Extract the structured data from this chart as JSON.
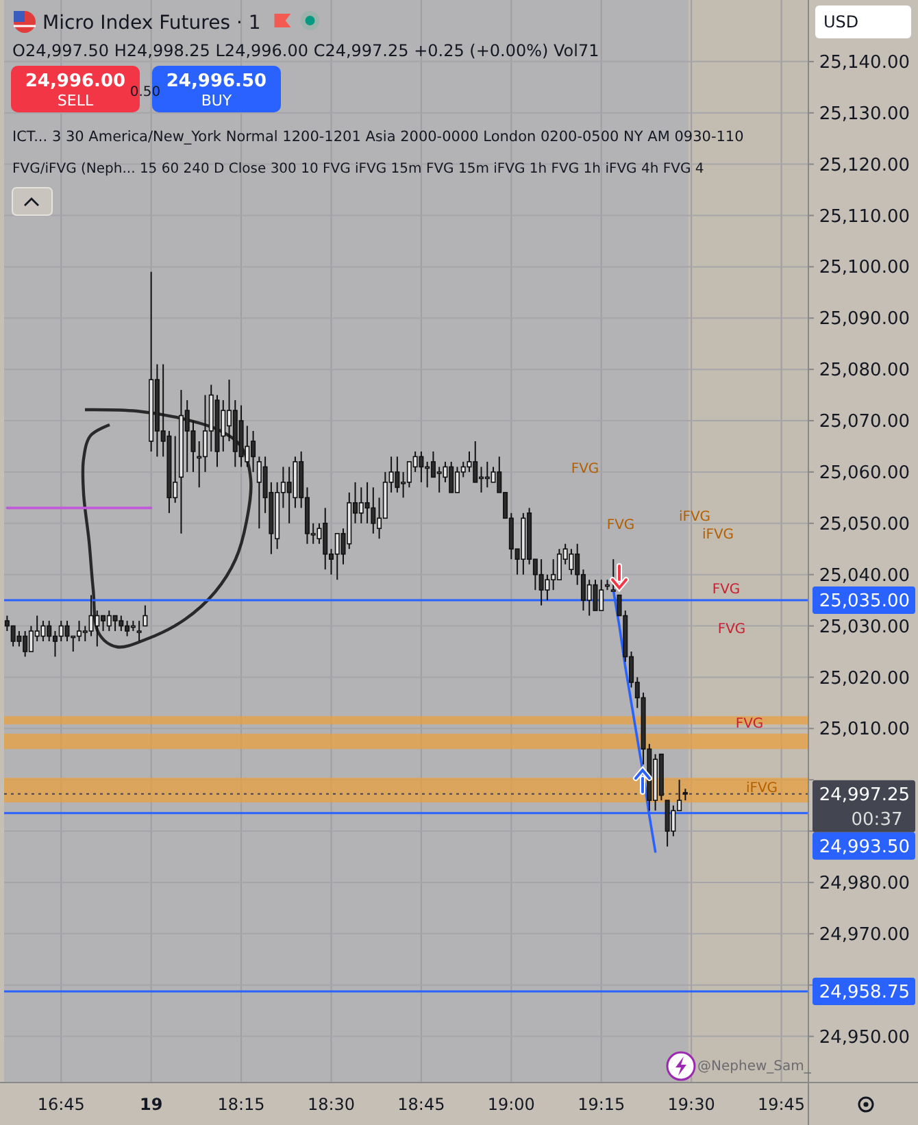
{
  "chart_data": {
    "type": "candlestick",
    "title": "Micro Index Futures · 1",
    "subtitle": "O24,997.50 H24,998.25 L24,996.00 C24,997.25 +0.25 (+0.00%) Vol71",
    "categories": [
      null,
      null,
      null,
      null,
      null,
      null,
      null,
      null,
      null,
      "16:45",
      null,
      null,
      null,
      null,
      null,
      null,
      null,
      null,
      null,
      null,
      null,
      null,
      null,
      null,
      "19",
      null,
      null,
      null,
      null,
      null,
      null,
      null,
      null,
      null,
      null,
      null,
      null,
      null,
      null,
      "18:15",
      null,
      null,
      null,
      null,
      null,
      null,
      null,
      null,
      null,
      null,
      null,
      null,
      null,
      null,
      "18:30",
      null,
      null,
      null,
      null,
      null,
      null,
      null,
      null,
      null,
      null,
      null,
      null,
      null,
      null,
      "18:45",
      null,
      null,
      null,
      null,
      null,
      null,
      null,
      null,
      null,
      null,
      null,
      null,
      null,
      null,
      "19:00",
      null,
      null,
      null,
      null,
      null,
      null,
      null,
      null,
      null,
      null,
      null,
      null,
      null,
      null,
      "19:15",
      null,
      null,
      null,
      null,
      null,
      null,
      null,
      null,
      null,
      null,
      null,
      null,
      null,
      null,
      "19:30",
      null,
      null,
      null,
      null,
      null,
      null,
      null,
      null,
      null,
      null,
      null,
      null,
      null,
      null,
      "19:45",
      null,
      null,
      null,
      null
    ],
    "ohlc": [
      [
        25031,
        25032,
        25029,
        25030
      ],
      [
        25030,
        25030,
        25026,
        25027
      ],
      [
        25028,
        25029,
        25026,
        25027
      ],
      [
        25028,
        25029,
        25024,
        25025
      ],
      [
        25025,
        25030,
        25025,
        25029
      ],
      [
        25028,
        25032,
        25027,
        25029
      ],
      [
        25028,
        25031,
        25027,
        25030
      ],
      [
        25030,
        25031,
        25027,
        25028
      ],
      [
        25028,
        25029,
        25024,
        25027
      ],
      [
        25028,
        25031,
        25027,
        25030
      ],
      [
        25030,
        25031,
        25027,
        25028
      ],
      [
        25028,
        25028,
        25025,
        25028
      ],
      [
        25028,
        25031,
        25027,
        25029
      ],
      [
        25029,
        25030,
        25027,
        25029
      ],
      [
        25029,
        25036,
        25028,
        25032
      ],
      [
        25030,
        25033,
        25026,
        25032
      ],
      [
        25032,
        25032,
        25029,
        25031
      ],
      [
        25030,
        25033,
        25029,
        25032
      ],
      [
        25032,
        25032,
        25029,
        25031
      ],
      [
        25031,
        25032,
        25029,
        25030
      ],
      [
        25030,
        25031,
        25028,
        25029
      ],
      [
        25030,
        25031,
        25029,
        25030
      ],
      [
        25029,
        25031,
        25027,
        25029
      ],
      [
        25030,
        25034,
        25030,
        25032
      ],
      [
        25066,
        25099,
        25064,
        25078
      ],
      [
        25078,
        25081,
        25063,
        25068
      ],
      [
        25068,
        25081,
        25063,
        25066
      ],
      [
        25067,
        25068,
        25052,
        25055
      ],
      [
        25055,
        25067,
        25054,
        25058
      ],
      [
        25059,
        25076,
        25048,
        25071
      ],
      [
        25072,
        25074,
        25060,
        25068
      ],
      [
        25068,
        25070,
        25060,
        25064
      ],
      [
        25063,
        25066,
        25057,
        25063
      ],
      [
        25063,
        25075,
        25060,
        25068
      ],
      [
        25068,
        25077,
        25064,
        25075
      ],
      [
        25074,
        25075,
        25061,
        25064
      ],
      [
        25067,
        25074,
        25064,
        25072
      ],
      [
        25069,
        25078,
        25066,
        25072
      ],
      [
        25072,
        25074,
        25061,
        25064
      ],
      [
        25070,
        25073,
        25061,
        25063
      ],
      [
        25062,
        25069,
        25061,
        25065
      ],
      [
        25066,
        25068,
        25060,
        25063
      ],
      [
        25058,
        25063,
        25049,
        25062
      ],
      [
        25061,
        25063,
        25052,
        25055
      ],
      [
        25056,
        25058,
        25044,
        25048
      ],
      [
        25047,
        25058,
        25045,
        25056
      ],
      [
        25056,
        25061,
        25053,
        25058
      ],
      [
        25058,
        25061,
        25050,
        25056
      ],
      [
        25055,
        25063,
        25053,
        25062
      ],
      [
        25062,
        25064,
        25053,
        25055
      ],
      [
        25055,
        25057,
        25046,
        25048
      ],
      [
        25048,
        25050,
        25046,
        25048
      ],
      [
        25047,
        25050,
        25046,
        25049
      ],
      [
        25050,
        25053,
        25041,
        25044
      ],
      [
        25044,
        25045,
        25040,
        25043
      ],
      [
        25044,
        25048,
        25039,
        25048
      ],
      [
        25048,
        25049,
        25042,
        25044
      ],
      [
        25046,
        25056,
        25045,
        25054
      ],
      [
        25054,
        25058,
        25050,
        25052
      ],
      [
        25052,
        25057,
        25050,
        25054
      ],
      [
        25054,
        25058,
        25050,
        25053
      ],
      [
        25053,
        25057,
        25048,
        25050
      ],
      [
        25049,
        25055,
        25047,
        25051
      ],
      [
        25051,
        25060,
        25051,
        25058
      ],
      [
        25058,
        25063,
        25056,
        25060
      ],
      [
        25060,
        25063,
        25056,
        25057
      ],
      [
        25058,
        25060,
        25055,
        25058
      ],
      [
        25058,
        25062,
        25057,
        25062
      ],
      [
        25061,
        25064,
        25060,
        25063
      ],
      [
        25063,
        25064,
        25058,
        25061
      ],
      [
        25061,
        25062,
        25057,
        25061
      ],
      [
        25062,
        25064,
        25059,
        25059
      ],
      [
        25060,
        25061,
        25056,
        25060
      ],
      [
        25059,
        25062,
        25058,
        25061
      ],
      [
        25061,
        25062,
        25056,
        25056
      ],
      [
        25056,
        25061,
        25056,
        25060
      ],
      [
        25060,
        25062,
        25059,
        25061
      ],
      [
        25061,
        25064,
        25060,
        25062
      ],
      [
        25062,
        25066,
        25058,
        25058
      ],
      [
        25059,
        25061,
        25056,
        25059
      ],
      [
        25059,
        25062,
        25057,
        25059
      ],
      [
        25058,
        25061,
        25058,
        25060
      ],
      [
        25060,
        25063,
        25056,
        25056
      ],
      [
        25056,
        25056,
        25051,
        25051
      ],
      [
        25051,
        25052,
        25043,
        25045
      ],
      [
        25045,
        25045,
        25040,
        25043
      ],
      [
        25043,
        25052,
        25040,
        25051
      ],
      [
        25052,
        25053,
        25042,
        25043
      ],
      [
        25043,
        25043,
        25037,
        25040
      ],
      [
        25040,
        25043,
        25034,
        25037
      ],
      [
        25037,
        25040,
        25035,
        25039
      ],
      [
        25039,
        25043,
        25037,
        25040
      ],
      [
        25039,
        25045,
        25039,
        25044
      ],
      [
        25043,
        25046,
        25042,
        25045
      ],
      [
        25041,
        25045,
        25040,
        25044
      ],
      [
        25044,
        25046,
        25038,
        25040
      ],
      [
        25040,
        25041,
        25033,
        25035
      ],
      [
        25035,
        25039,
        25032,
        25038
      ],
      [
        25038,
        25039,
        25033,
        25033
      ],
      [
        25033,
        25039,
        25033,
        25037
      ],
      [
        25038,
        25039,
        25037,
        25038
      ],
      [
        25037,
        25043,
        25037,
        25037
      ],
      [
        25036,
        25036,
        25032,
        25032
      ],
      [
        25032,
        25033,
        25023,
        25024
      ],
      [
        25024,
        25025,
        25018,
        25019
      ],
      [
        25019,
        25020,
        25014,
        25016
      ],
      [
        25016,
        25017,
        25003,
        25006
      ],
      [
        25006,
        25007,
        24994,
        24996
      ],
      [
        24996,
        25005,
        24994,
        25004
      ],
      [
        25005,
        25005,
        24996,
        24997
      ],
      [
        24996,
        24996,
        24987,
        24990
      ],
      [
        24990,
        24995,
        24989,
        24994
      ],
      [
        24994,
        25000,
        24994,
        24996
      ],
      [
        24997.5,
        24998.25,
        24996,
        24997.25
      ],
      null,
      null,
      null,
      null,
      null,
      null,
      null,
      null,
      null,
      null,
      null,
      null,
      null,
      null,
      null,
      null,
      null,
      null,
      null,
      null
    ],
    "series": [
      {
        "type": "line",
        "color": "#2962ff",
        "values": [
          null,
          null,
          null,
          null,
          null,
          null,
          null,
          null,
          null,
          null,
          null,
          null,
          null,
          null,
          null,
          null,
          null,
          null,
          null,
          null,
          null,
          null,
          null,
          null,
          null,
          null,
          null,
          null,
          null,
          null,
          null,
          null,
          null,
          null,
          null,
          null,
          null,
          null,
          null,
          null,
          null,
          null,
          null,
          null,
          null,
          null,
          null,
          null,
          null,
          null,
          null,
          null,
          null,
          null,
          null,
          null,
          null,
          null,
          null,
          null,
          null,
          null,
          null,
          null,
          null,
          null,
          null,
          null,
          null,
          null,
          null,
          null,
          null,
          null,
          null,
          null,
          null,
          null,
          null,
          null,
          null,
          null,
          null,
          null,
          null,
          null,
          null,
          null,
          null,
          null,
          null,
          null,
          null,
          null,
          null,
          null,
          null,
          null,
          null,
          null,
          null,
          25037,
          25030,
          25022,
          25015,
          25008,
          25001,
          24993,
          24986,
          null,
          null,
          null,
          null,
          null,
          null,
          null,
          null,
          null,
          null,
          null,
          null,
          null,
          null,
          null,
          null,
          null,
          null,
          null,
          null,
          null,
          null,
          null,
          null,
          null
        ]
      },
      {
        "type": "line",
        "color": "#c05ad8",
        "values": [
          25053,
          25053,
          25053,
          25053,
          25053,
          25053,
          25053,
          25053,
          25053,
          25053,
          25053,
          25053,
          25053,
          25053,
          25053,
          25053,
          25053,
          25053,
          25053,
          25053,
          25053,
          25053,
          25053,
          25053,
          25053,
          null,
          null,
          null,
          null,
          null,
          null,
          null,
          null,
          null,
          null,
          null,
          null,
          null,
          null,
          null,
          null,
          null,
          null,
          null,
          null,
          null,
          null,
          null,
          null,
          null,
          null,
          null,
          null,
          null,
          null,
          null,
          null,
          null,
          null,
          null,
          null,
          null,
          null,
          null,
          null,
          null,
          null,
          null,
          null,
          null,
          null,
          null,
          null,
          null,
          null,
          null,
          null,
          null,
          null,
          null,
          null,
          null,
          null,
          null,
          null,
          null,
          null,
          null,
          null,
          null,
          null,
          null,
          null,
          null,
          null,
          null,
          null,
          null,
          null,
          null,
          null,
          null,
          null,
          null,
          null,
          null,
          null,
          null,
          null,
          null,
          null,
          null,
          null,
          null,
          null,
          null,
          null,
          null,
          null,
          null,
          null,
          null,
          null,
          null,
          null,
          null,
          null,
          null,
          null,
          null,
          null,
          null,
          null,
          null
        ]
      }
    ],
    "ylim": [
      24941,
      25152
    ],
    "yticks": [
      {
        "value": 24950,
        "label": "24,950.00"
      },
      {
        "value": 24960,
        "label": null
      },
      {
        "value": 24970,
        "label": "24,970.00"
      },
      {
        "value": 24980,
        "label": "24,980.00"
      },
      {
        "value": 24990,
        "label": null
      },
      {
        "value": 25000,
        "label": null
      },
      {
        "value": 25010,
        "label": "25,010.00"
      },
      {
        "value": 25020,
        "label": "25,020.00"
      },
      {
        "value": 25030,
        "label": "25,030.00"
      },
      {
        "value": 25040,
        "label": "25,040.00"
      },
      {
        "value": 25050,
        "label": "25,050.00"
      },
      {
        "value": 25060,
        "label": "25,060.00"
      },
      {
        "value": 25070,
        "label": "25,070.00"
      },
      {
        "value": 25080,
        "label": "25,080.00"
      },
      {
        "value": 25090,
        "label": "25,090.00"
      },
      {
        "value": 25100,
        "label": "25,100.00"
      },
      {
        "value": 25110,
        "label": "25,110.00"
      },
      {
        "value": 25120,
        "label": "25,120.00"
      },
      {
        "value": 25130,
        "label": "25,130.00"
      },
      {
        "value": 25140,
        "label": "25,140.00"
      }
    ],
    "grid": true,
    "ref_lines": [
      {
        "axis": "y",
        "value": 25035,
        "label": "25,035.00",
        "color": "#2962ff"
      },
      {
        "axis": "y",
        "value": 24997.25,
        "label": "24,997.25",
        "color": "#434651",
        "line_style": "dotted"
      },
      {
        "axis": "y",
        "value": 24993.5,
        "label": "24,993.50",
        "color": "#2962ff"
      },
      {
        "axis": "y",
        "value": 24958.75,
        "label": "24,958.75",
        "color": "#2962ff"
      }
    ],
    "bands": [
      {
        "axis": "y",
        "from": 25010.8,
        "to": 25012.4,
        "color": "#e8a040"
      },
      {
        "axis": "y",
        "from": 25006,
        "to": 25009,
        "color": "#e8a040"
      },
      {
        "axis": "y",
        "from": 24995.6,
        "to": 25000.4,
        "color": "#e8a040"
      }
    ],
    "annotations": [
      "24,996.00",
      "SELL",
      "0.50",
      "24,996.50",
      "BUY",
      "ICT... 3 30 America/New_York Normal 1200-1201 Asia 2000-0000 London 0200-0500 NY AM 0930-110",
      "FVG/iFVG (Neph...  15 60 240 D Close 300 10 FVG iFVG 15m FVG 15m iFVG 1h FVG 1h iFVG 4h FVG 4",
      "USD",
      "00:37",
      "@Nephew_Sam_",
      "FVG",
      "FVG",
      "iFVG",
      "iFVG",
      "FVG",
      "FVG",
      "FVG",
      "iFVG"
    ]
  }
}
